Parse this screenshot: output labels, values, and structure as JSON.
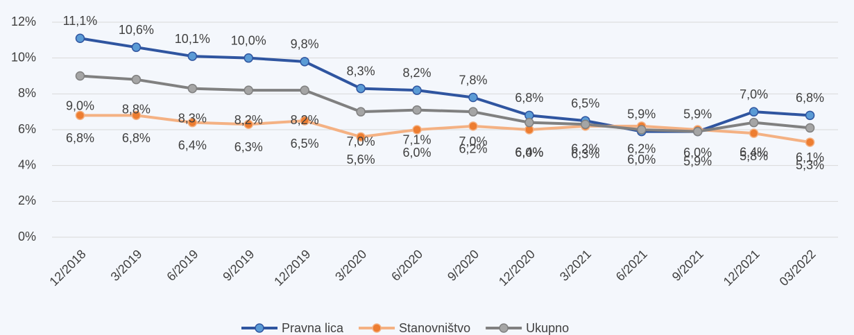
{
  "chart_data": {
    "type": "line",
    "categories": [
      "12/2018",
      "3/2019",
      "6/2019",
      "9/2019",
      "12/2019",
      "3/2020",
      "6/2020",
      "9/2020",
      "12/2020",
      "3/2021",
      "6/2021",
      "9/2021",
      "12/2021",
      "03/2022"
    ],
    "series": [
      {
        "name": "Pravna lica",
        "color": "#2f55a0",
        "marker_color": "#5b9bd5",
        "values": [
          11.1,
          10.6,
          10.1,
          10.0,
          9.8,
          8.3,
          8.2,
          7.8,
          6.8,
          6.5,
          5.9,
          5.9,
          7.0,
          6.8
        ],
        "value_labels": [
          "11,1%",
          "10,6%",
          "10,1%",
          "10,0%",
          "9,8%",
          "8,3%",
          "8,2%",
          "7,8%",
          "6,8%",
          "6,5%",
          "5,9%",
          "5,9%",
          "7,0%",
          "6,8%"
        ]
      },
      {
        "name": "Stanovništvo",
        "color": "#f4b183",
        "marker_color": "#ed7d31",
        "values": [
          6.8,
          6.8,
          6.4,
          6.3,
          6.5,
          5.6,
          6.0,
          6.2,
          6.0,
          6.2,
          6.2,
          6.0,
          5.8,
          5.3
        ],
        "value_labels": [
          "6,8%",
          "6,8%",
          "6,4%",
          "6,3%",
          "6,5%",
          "5,6%",
          "6,0%",
          "6,2%",
          "6,0%",
          "6,2%",
          "6,2%",
          "6,0%",
          "5,8%",
          "5,3%"
        ]
      },
      {
        "name": "Ukupno",
        "color": "#808080",
        "marker_color": "#a5a5a5",
        "values": [
          9.0,
          8.8,
          8.3,
          8.2,
          8.2,
          7.0,
          7.1,
          7.0,
          6.4,
          6.3,
          6.0,
          5.9,
          6.4,
          6.1
        ],
        "value_labels": [
          "9,0%",
          "8,8%",
          "8,3%",
          "8,2%",
          "8,2%",
          "7,0%",
          "7,1%",
          "7,0%",
          "6,4%",
          "6,3%",
          "6,0%",
          "5,9%",
          "6,4%",
          "6,1%"
        ]
      }
    ],
    "ylim": [
      0,
      12
    ],
    "yticks": [
      {
        "value": 0,
        "label": "0%"
      },
      {
        "value": 2,
        "label": "2%"
      },
      {
        "value": 4,
        "label": "4%"
      },
      {
        "value": 6,
        "label": "6%"
      },
      {
        "value": 8,
        "label": "8%"
      },
      {
        "value": 10,
        "label": "10%"
      },
      {
        "value": 12,
        "label": "12%"
      }
    ],
    "grid": true,
    "legend": "bottom"
  }
}
